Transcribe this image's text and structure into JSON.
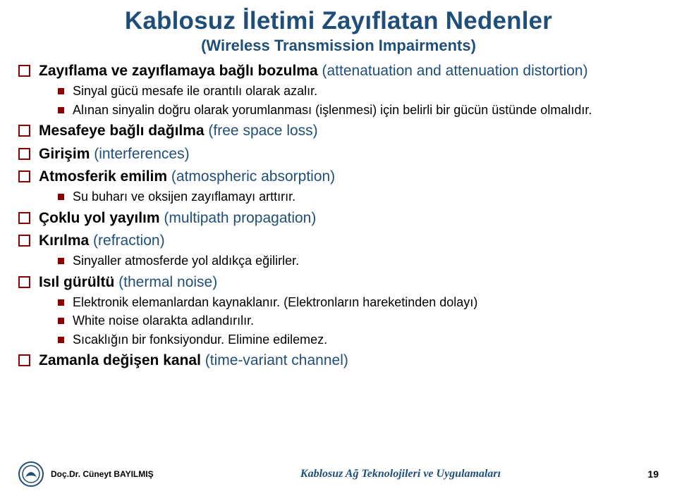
{
  "title": "Kablosuz İletimi Zayıflatan Nedenler",
  "subtitle": "(Wireless Transmission Impairments)",
  "items": [
    {
      "bold": "Zayıflama ve zayıflamaya bağlı bozulma",
      "blue": " (attenatuation and attenuation distortion)",
      "sub": [
        {
          "text": "Sinyal gücü mesafe ile orantılı olarak azalır."
        },
        {
          "text": "Alınan sinyalin doğru olarak yorumlanması (işlenmesi) için belirli bir gücün üstünde olmalıdır."
        }
      ]
    },
    {
      "bold": "Mesafeye bağlı dağılma",
      "blue": " (free space loss)",
      "sub": []
    },
    {
      "bold": "Girişim",
      "blue": " (interferences)",
      "sub": []
    },
    {
      "bold": "Atmosferik emilim",
      "blue": " (atmospheric absorption)",
      "sub": [
        {
          "text": "Su buharı ve oksijen zayıflamayı arttırır."
        }
      ]
    },
    {
      "bold": "Çoklu yol yayılım",
      "blue": " (multipath propagation)",
      "sub": []
    },
    {
      "bold": "Kırılma",
      "blue": " (refraction)",
      "sub": [
        {
          "text": "Sinyaller atmosferde yol aldıkça eğilirler."
        }
      ]
    },
    {
      "bold": "Isıl gürültü",
      "blue": " (thermal noise)",
      "sub": [
        {
          "text": "Elektronik elemanlardan kaynaklanır. (Elektronların hareketinden dolayı)"
        },
        {
          "text": "White noise olarakta adlandırılır."
        },
        {
          "text": "Sıcaklığın bir fonksiyondur. Elimine edilemez."
        }
      ]
    },
    {
      "bold": "Zamanla değişen kanal",
      "blue": " (time-variant channel)",
      "sub": []
    }
  ],
  "footer": {
    "author": "Doç.Dr. Cüneyt BAYILMIŞ",
    "center": "Kablosuz Ağ Teknolojileri ve Uygulamaları",
    "page": "19"
  },
  "colors": {
    "title": "#1f4e79",
    "bullet_border": "#8b0000",
    "bullet_fill": "#8b0000",
    "text": "#000000",
    "background": "#ffffff"
  }
}
